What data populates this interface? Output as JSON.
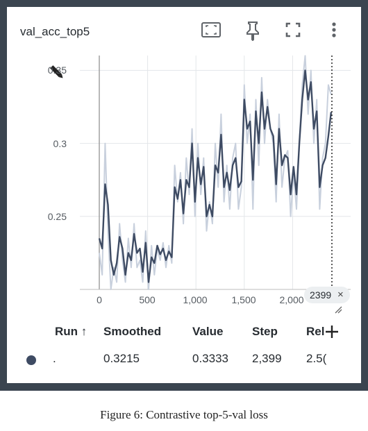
{
  "card": {
    "title": "val_acc_top5",
    "toolbar_icons": [
      "fit-domain-icon",
      "pin-icon",
      "fullscreen-icon",
      "more-vert-icon"
    ]
  },
  "chart_data": {
    "type": "line",
    "x_ticks": [
      "0",
      "500",
      "1,000",
      "1,500",
      "2,000"
    ],
    "y_ticks": [
      "0.25",
      "0.3",
      "0.35"
    ],
    "xlim": [
      0,
      2450
    ],
    "ylim": [
      0.2,
      0.35
    ],
    "grid": true,
    "hover_step": 2399,
    "series": [
      {
        "kind": "raw",
        "color": "#c8d0dd",
        "x": [
          0,
          30,
          60,
          90,
          120,
          150,
          180,
          210,
          240,
          270,
          300,
          330,
          360,
          390,
          420,
          450,
          480,
          510,
          540,
          570,
          600,
          630,
          660,
          690,
          720,
          750,
          780,
          810,
          840,
          870,
          900,
          930,
          960,
          990,
          1020,
          1050,
          1080,
          1110,
          1140,
          1170,
          1200,
          1230,
          1260,
          1290,
          1320,
          1350,
          1380,
          1410,
          1440,
          1470,
          1500,
          1530,
          1560,
          1590,
          1620,
          1650,
          1680,
          1710,
          1740,
          1770,
          1800,
          1830,
          1860,
          1890,
          1920,
          1950,
          1980,
          2010,
          2040,
          2070,
          2100,
          2130,
          2160,
          2190,
          2220,
          2250,
          2280,
          2310,
          2340,
          2370,
          2399
        ],
        "y": [
          0.225,
          0.21,
          0.3,
          0.24,
          0.2,
          0.215,
          0.205,
          0.245,
          0.22,
          0.205,
          0.235,
          0.215,
          0.245,
          0.215,
          0.22,
          0.205,
          0.24,
          0.2,
          0.23,
          0.21,
          0.228,
          0.22,
          0.232,
          0.215,
          0.23,
          0.218,
          0.285,
          0.26,
          0.28,
          0.245,
          0.29,
          0.265,
          0.31,
          0.25,
          0.3,
          0.265,
          0.29,
          0.24,
          0.26,
          0.245,
          0.3,
          0.27,
          0.32,
          0.26,
          0.285,
          0.255,
          0.29,
          0.3,
          0.255,
          0.27,
          0.34,
          0.3,
          0.32,
          0.255,
          0.33,
          0.285,
          0.345,
          0.3,
          0.33,
          0.31,
          0.3,
          0.26,
          0.32,
          0.27,
          0.29,
          0.295,
          0.25,
          0.28,
          0.255,
          0.3,
          0.34,
          0.36,
          0.32,
          0.35,
          0.3,
          0.33,
          0.255,
          0.29,
          0.3,
          0.34,
          0.3333
        ]
      },
      {
        "kind": "smoothed",
        "color": "#3e4b63",
        "x": [
          0,
          30,
          60,
          90,
          120,
          150,
          180,
          210,
          240,
          270,
          300,
          330,
          360,
          390,
          420,
          450,
          480,
          510,
          540,
          570,
          600,
          630,
          660,
          690,
          720,
          750,
          780,
          810,
          840,
          870,
          900,
          930,
          960,
          990,
          1020,
          1050,
          1080,
          1110,
          1140,
          1170,
          1200,
          1230,
          1260,
          1290,
          1320,
          1350,
          1380,
          1410,
          1440,
          1470,
          1500,
          1530,
          1560,
          1590,
          1620,
          1650,
          1680,
          1710,
          1740,
          1770,
          1800,
          1830,
          1860,
          1890,
          1920,
          1950,
          1980,
          2010,
          2040,
          2070,
          2100,
          2130,
          2160,
          2190,
          2220,
          2250,
          2280,
          2310,
          2340,
          2370,
          2399
        ],
        "y": [
          0.235,
          0.228,
          0.272,
          0.258,
          0.22,
          0.21,
          0.218,
          0.236,
          0.228,
          0.21,
          0.225,
          0.22,
          0.238,
          0.225,
          0.228,
          0.212,
          0.232,
          0.205,
          0.222,
          0.218,
          0.23,
          0.224,
          0.228,
          0.22,
          0.226,
          0.222,
          0.27,
          0.262,
          0.275,
          0.252,
          0.275,
          0.27,
          0.3,
          0.26,
          0.29,
          0.272,
          0.284,
          0.25,
          0.258,
          0.25,
          0.285,
          0.28,
          0.306,
          0.27,
          0.28,
          0.268,
          0.285,
          0.29,
          0.27,
          0.274,
          0.33,
          0.31,
          0.315,
          0.275,
          0.322,
          0.3,
          0.335,
          0.31,
          0.325,
          0.31,
          0.305,
          0.272,
          0.31,
          0.285,
          0.292,
          0.29,
          0.265,
          0.284,
          0.265,
          0.3,
          0.33,
          0.35,
          0.33,
          0.342,
          0.31,
          0.322,
          0.27,
          0.285,
          0.29,
          0.305,
          0.3215
        ]
      }
    ]
  },
  "table": {
    "headers": {
      "run": "Run ↑",
      "smoothed": "Smoothed",
      "value": "Value",
      "step": "Step",
      "relative": "Rel"
    },
    "row": {
      "run": ".",
      "smoothed": "0.3215",
      "value": "0.3333",
      "step": "2,399",
      "relative": "2.5("
    },
    "run_color": "#3e4b63"
  },
  "chip": {
    "label": "2399",
    "close": "×"
  },
  "caption": "Figure 6: Contrastive top-5-val loss"
}
